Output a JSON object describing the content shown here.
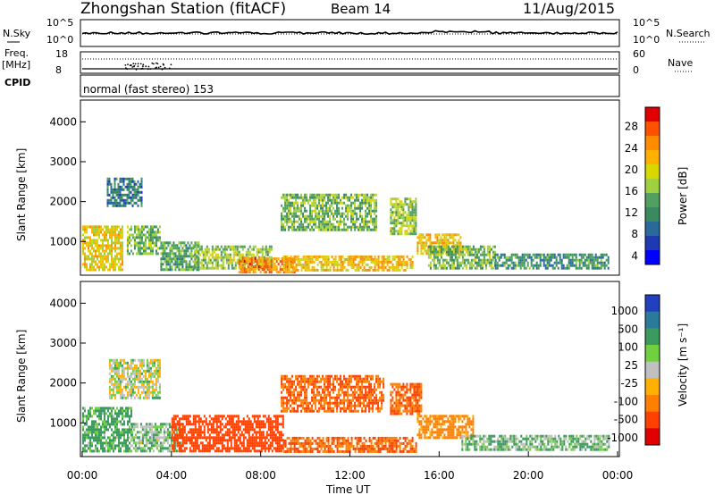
{
  "header": {
    "station": "Zhongshan Station (fitACF)",
    "beam": "Beam 14",
    "date": "11/Aug/2015"
  },
  "summary_panels": {
    "nsky_label": "N.Sky",
    "nsky_ticks": [
      "10^5",
      "10^0"
    ],
    "nsearch_label": "N.Search",
    "nsearch_ticks": [
      "10^5",
      "10^0"
    ],
    "freq_label_line1": "Freq.",
    "freq_label_line2": "[MHz]",
    "freq_ticks": [
      "18",
      "8"
    ],
    "nave_label": "Nave",
    "nave_ticks": [
      "60",
      "0"
    ],
    "cpid_label": "CPID",
    "cpid_text": "normal (fast stereo) 153"
  },
  "colorbars": {
    "power": {
      "label": "Power [dB]",
      "ticks": [
        "28",
        "24",
        "20",
        "16",
        "12",
        "8",
        "4"
      ],
      "colors": [
        "#e00000",
        "#ff5000",
        "#ff8c00",
        "#ffb000",
        "#d8d800",
        "#a0d040",
        "#50a060",
        "#3a8a60",
        "#2a6a9a",
        "#1e3ab0",
        "#0000ff"
      ]
    },
    "velocity": {
      "label": "Velocity [m s⁻¹]",
      "ticks": [
        "1000",
        "500",
        "100",
        "25",
        "-25",
        "-100",
        "-500",
        "-1000"
      ],
      "colors": [
        "#2040c0",
        "#2a7a9a",
        "#3a9a60",
        "#70d040",
        "#c0c0c0",
        "#ffb000",
        "#ff8000",
        "#ff4000",
        "#e00000"
      ]
    }
  },
  "axes": {
    "ylabel": "Slant Range [km]",
    "yticks": [
      "4000",
      "3000",
      "2000",
      "1000"
    ],
    "xticks": [
      "00:00",
      "04:00",
      "08:00",
      "12:00",
      "16:00",
      "20:00",
      "00:00"
    ],
    "xlabel": "Time UT"
  },
  "chart_data": [
    {
      "type": "heatmap",
      "title": "Power",
      "x": "Time UT (hours)",
      "xlim": [
        0,
        24
      ],
      "ylim": [
        200,
        4500
      ],
      "blobs": [
        {
          "t0": 0.0,
          "t1": 1.8,
          "r0": 300,
          "r1": 1400,
          "v": 20
        },
        {
          "t0": 1.1,
          "t1": 2.7,
          "r0": 1900,
          "r1": 2600,
          "v": 8
        },
        {
          "t0": 2.0,
          "t1": 3.5,
          "r0": 700,
          "r1": 1400,
          "v": 14
        },
        {
          "t0": 3.5,
          "t1": 5.2,
          "r0": 300,
          "r1": 1000,
          "v": 12
        },
        {
          "t0": 5.0,
          "t1": 8.5,
          "r0": 300,
          "r1": 900,
          "v": 16
        },
        {
          "t0": 7.0,
          "t1": 9.5,
          "r0": 250,
          "r1": 600,
          "v": 26
        },
        {
          "t0": 9.0,
          "t1": 14.8,
          "r0": 300,
          "r1": 650,
          "v": 22
        },
        {
          "t0": 8.9,
          "t1": 13.2,
          "r0": 1300,
          "r1": 2200,
          "v": 14
        },
        {
          "t0": 13.8,
          "t1": 15.0,
          "r0": 1200,
          "r1": 2100,
          "v": 16
        },
        {
          "t0": 15.0,
          "t1": 17.0,
          "r0": 700,
          "r1": 1200,
          "v": 22
        },
        {
          "t0": 15.5,
          "t1": 18.5,
          "r0": 300,
          "r1": 900,
          "v": 14
        },
        {
          "t0": 18.5,
          "t1": 23.6,
          "r0": 300,
          "r1": 700,
          "v": 10
        }
      ]
    },
    {
      "type": "heatmap",
      "title": "Velocity",
      "x": "Time UT (hours)",
      "xlim": [
        0,
        24
      ],
      "ylim": [
        200,
        4500
      ],
      "blobs": [
        {
          "t0": 0.0,
          "t1": 2.2,
          "r0": 300,
          "r1": 1400,
          "v": 100
        },
        {
          "t0": 1.2,
          "t1": 3.5,
          "r0": 1600,
          "r1": 2600,
          "v": 0
        },
        {
          "t0": 2.2,
          "t1": 4.5,
          "r0": 300,
          "r1": 1000,
          "v": 50
        },
        {
          "t0": 4.0,
          "t1": 9.0,
          "r0": 300,
          "r1": 1200,
          "v": -400
        },
        {
          "t0": 9.0,
          "t1": 15.0,
          "r0": 250,
          "r1": 650,
          "v": -300
        },
        {
          "t0": 8.9,
          "t1": 13.5,
          "r0": 1300,
          "r1": 2200,
          "v": -300
        },
        {
          "t0": 13.8,
          "t1": 15.2,
          "r0": 1200,
          "r1": 2000,
          "v": -300
        },
        {
          "t0": 15.0,
          "t1": 17.5,
          "r0": 600,
          "r1": 1200,
          "v": -150
        },
        {
          "t0": 17.0,
          "t1": 23.6,
          "r0": 300,
          "r1": 700,
          "v": 60
        }
      ]
    }
  ]
}
